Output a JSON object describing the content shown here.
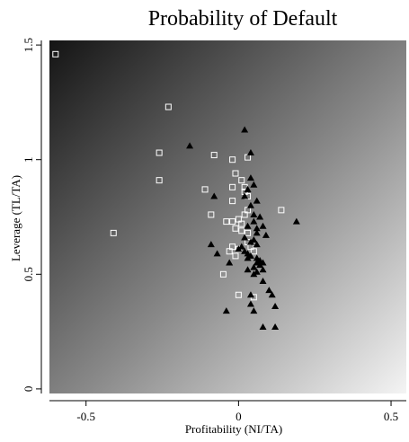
{
  "chart_data": {
    "type": "scatter",
    "title": "Probability of Default",
    "xlabel": "Profitability (NI/TA)",
    "ylabel": "Leverage (TL/TA)",
    "xlim": [
      -0.62,
      0.55
    ],
    "ylim": [
      -0.02,
      1.52
    ],
    "x_ticks": [
      -0.5,
      0,
      0.5
    ],
    "x_tick_labels": [
      "-0.5",
      "0",
      "0.5"
    ],
    "y_ticks": [
      0,
      0.5,
      1,
      1.5
    ],
    "y_tick_labels": [
      "0",
      "0.5",
      "1",
      "1.5"
    ],
    "background": {
      "kind": "gradient",
      "dark_corner": "top-left",
      "light_corner": "bottom-right",
      "dark_color": "#141414",
      "light_color": "#f4f4f4"
    },
    "grid": false,
    "legend": null,
    "series": [
      {
        "marker": "hollow-square",
        "color": "#ffffff",
        "x": [
          -0.6,
          -0.23,
          -0.26,
          -0.26,
          -0.41,
          -0.08,
          -0.11,
          -0.09,
          -0.04,
          -0.02,
          -0.01,
          0.03,
          0.01,
          0.02,
          -0.02,
          0.02,
          0.03,
          -0.02,
          -0.02,
          0.0,
          0.01,
          -0.01,
          0.03,
          0.02,
          0.14,
          0.01,
          0.03,
          -0.02,
          0.0,
          0.04,
          0.03,
          0.05,
          -0.05,
          -0.03,
          -0.01,
          0.0,
          0.05
        ],
        "y": [
          1.46,
          1.23,
          1.03,
          0.91,
          0.68,
          1.02,
          0.87,
          0.76,
          0.73,
          1.0,
          0.94,
          1.01,
          0.91,
          0.88,
          0.88,
          0.86,
          0.84,
          0.82,
          0.73,
          0.74,
          0.72,
          0.7,
          0.78,
          0.76,
          0.78,
          0.69,
          0.68,
          0.62,
          0.61,
          0.62,
          0.64,
          0.6,
          0.5,
          0.6,
          0.58,
          0.41,
          0.4
        ]
      },
      {
        "marker": "filled-triangle",
        "color": "#000000",
        "x": [
          0.02,
          -0.16,
          -0.08,
          0.04,
          0.04,
          0.05,
          0.03,
          0.02,
          0.06,
          0.04,
          0.05,
          0.07,
          0.05,
          0.19,
          0.03,
          0.06,
          0.08,
          0.06,
          0.09,
          0.02,
          0.05,
          0.04,
          0.06,
          0.01,
          0.0,
          0.02,
          0.03,
          0.04,
          0.06,
          0.07,
          0.08,
          0.07,
          0.05,
          0.08,
          0.06,
          0.05,
          -0.09,
          -0.07,
          0.03,
          -0.03,
          0.06,
          0.03,
          0.08,
          0.1,
          0.11,
          0.04,
          0.04,
          0.12,
          -0.04,
          0.05,
          0.08,
          0.12
        ],
        "y": [
          1.13,
          1.06,
          0.84,
          1.03,
          0.92,
          0.89,
          0.87,
          0.84,
          0.82,
          0.8,
          0.76,
          0.75,
          0.73,
          0.73,
          0.71,
          0.7,
          0.71,
          0.68,
          0.67,
          0.66,
          0.65,
          0.64,
          0.63,
          0.62,
          0.61,
          0.6,
          0.59,
          0.58,
          0.57,
          0.56,
          0.55,
          0.54,
          0.53,
          0.52,
          0.51,
          0.5,
          0.63,
          0.59,
          0.57,
          0.55,
          0.55,
          0.52,
          0.47,
          0.43,
          0.41,
          0.41,
          0.37,
          0.36,
          0.34,
          0.34,
          0.27,
          0.27
        ]
      }
    ]
  }
}
